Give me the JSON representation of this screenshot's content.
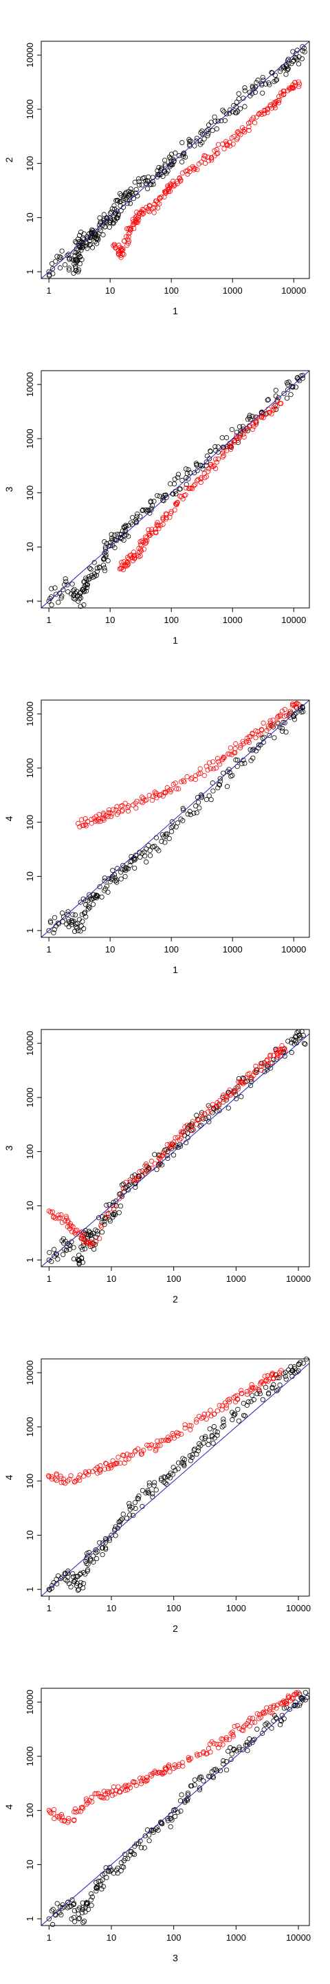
{
  "chart_data": [
    {
      "type": "scatter",
      "xlabel": "1",
      "ylabel": "2",
      "log_x": true,
      "log_y": true,
      "xlim": [
        0.75,
        18000
      ],
      "ylim": [
        0.75,
        18000
      ],
      "x_ticks": [
        1,
        10,
        100,
        1000,
        10000
      ],
      "y_ticks": [
        1,
        10,
        100,
        1000,
        10000
      ],
      "x_tick_labels": [
        "1",
        "10",
        "100",
        "1000",
        "10000"
      ],
      "y_tick_labels": [
        "1",
        "10",
        "100",
        "1000",
        "10000"
      ],
      "reference_line": "y = x",
      "grid": false,
      "colors": {
        "black_series": "#000000",
        "red_series": "#ff0000",
        "reference_line": "#1f1fb8"
      },
      "series": [
        {
          "color": "black",
          "points": [
            [
              1,
              1
            ],
            [
              2,
              2
            ],
            [
              3,
              1
            ],
            [
              3,
              2
            ],
            [
              3,
              4
            ],
            [
              4,
              3
            ],
            [
              5,
              5
            ],
            [
              6,
              4
            ],
            [
              8,
              8
            ],
            [
              10,
              10
            ],
            [
              12,
              12
            ],
            [
              15,
              20
            ],
            [
              20,
              25
            ],
            [
              30,
              40
            ],
            [
              50,
              55
            ],
            [
              80,
              90
            ],
            [
              100,
              110
            ],
            [
              200,
              210
            ],
            [
              400,
              420
            ],
            [
              800,
              820
            ],
            [
              1500,
              1600
            ],
            [
              3000,
              2800
            ],
            [
              6000,
              5000
            ],
            [
              10000,
              8000
            ],
            [
              14000,
              12000
            ]
          ]
        },
        {
          "color": "red",
          "points": [
            [
              12,
              3
            ],
            [
              15,
              2
            ],
            [
              20,
              5
            ],
            [
              25,
              8
            ],
            [
              30,
              12
            ],
            [
              50,
              15
            ],
            [
              80,
              30
            ],
            [
              100,
              40
            ],
            [
              200,
              70
            ],
            [
              400,
              130
            ],
            [
              800,
              230
            ],
            [
              1500,
              400
            ],
            [
              3000,
              800
            ],
            [
              5000,
              1300
            ],
            [
              8000,
              2200
            ],
            [
              12000,
              3200
            ]
          ]
        }
      ]
    },
    {
      "type": "scatter",
      "xlabel": "1",
      "ylabel": "3",
      "log_x": true,
      "log_y": true,
      "xlim": [
        0.75,
        18000
      ],
      "ylim": [
        0.75,
        18000
      ],
      "x_ticks": [
        1,
        10,
        100,
        1000,
        10000
      ],
      "y_ticks": [
        1,
        10,
        100,
        1000,
        10000
      ],
      "x_tick_labels": [
        "1",
        "10",
        "100",
        "1000",
        "10000"
      ],
      "y_tick_labels": [
        "1",
        "10",
        "100",
        "1000",
        "10000"
      ],
      "reference_line": "y = x",
      "grid": false,
      "colors": {
        "black_series": "#000000",
        "red_series": "#ff0000",
        "reference_line": "#1f1fb8"
      },
      "series": [
        {
          "color": "black",
          "points": [
            [
              1,
              1
            ],
            [
              2,
              2
            ],
            [
              3,
              1
            ],
            [
              4,
              2
            ],
            [
              5,
              3
            ],
            [
              8,
              6
            ],
            [
              10,
              12
            ],
            [
              15,
              15
            ],
            [
              20,
              25
            ],
            [
              40,
              45
            ],
            [
              80,
              90
            ],
            [
              150,
              170
            ],
            [
              300,
              320
            ],
            [
              700,
              700
            ],
            [
              1500,
              1500
            ],
            [
              3000,
              3100
            ],
            [
              8000,
              8000
            ],
            [
              14000,
              13000
            ]
          ]
        },
        {
          "color": "red",
          "points": [
            [
              15,
              4
            ],
            [
              20,
              6
            ],
            [
              30,
              8
            ],
            [
              40,
              15
            ],
            [
              60,
              25
            ],
            [
              100,
              45
            ],
            [
              200,
              120
            ],
            [
              400,
              250
            ],
            [
              800,
              600
            ],
            [
              1500,
              1200
            ],
            [
              3000,
              2500
            ],
            [
              6000,
              4500
            ]
          ]
        }
      ]
    },
    {
      "type": "scatter",
      "xlabel": "1",
      "ylabel": "4",
      "log_x": true,
      "log_y": true,
      "xlim": [
        0.75,
        18000
      ],
      "ylim": [
        0.75,
        18000
      ],
      "x_ticks": [
        1,
        10,
        100,
        1000,
        10000
      ],
      "y_ticks": [
        1,
        10,
        100,
        1000,
        10000
      ],
      "x_tick_labels": [
        "1",
        "10",
        "100",
        "1000",
        "10000"
      ],
      "y_tick_labels": [
        "1",
        "10",
        "100",
        "1000",
        "10000"
      ],
      "reference_line": "y = x",
      "grid": false,
      "colors": {
        "black_series": "#000000",
        "red_series": "#ff0000",
        "reference_line": "#1f1fb8"
      },
      "series": [
        {
          "color": "black",
          "points": [
            [
              1,
              1
            ],
            [
              2,
              2
            ],
            [
              3,
              1
            ],
            [
              4,
              3
            ],
            [
              6,
              4
            ],
            [
              10,
              8
            ],
            [
              15,
              12
            ],
            [
              25,
              20
            ],
            [
              50,
              35
            ],
            [
              100,
              80
            ],
            [
              250,
              200
            ],
            [
              600,
              500
            ],
            [
              1500,
              1400
            ],
            [
              4000,
              4000
            ],
            [
              10000,
              9000
            ],
            [
              14000,
              13000
            ]
          ]
        },
        {
          "color": "red",
          "points": [
            [
              3,
              95
            ],
            [
              6,
              110
            ],
            [
              10,
              150
            ],
            [
              20,
              200
            ],
            [
              50,
              300
            ],
            [
              100,
              400
            ],
            [
              300,
              800
            ],
            [
              700,
              1500
            ],
            [
              1500,
              2800
            ],
            [
              3000,
              5000
            ],
            [
              6000,
              9000
            ],
            [
              12000,
              15000
            ]
          ]
        }
      ]
    },
    {
      "type": "scatter",
      "xlabel": "2",
      "ylabel": "3",
      "log_x": true,
      "log_y": true,
      "xlim": [
        0.75,
        15000
      ],
      "ylim": [
        0.75,
        18000
      ],
      "x_ticks": [
        1,
        10,
        100,
        1000,
        10000
      ],
      "y_ticks": [
        1,
        10,
        100,
        1000,
        10000
      ],
      "x_tick_labels": [
        "1",
        "10",
        "100",
        "1000",
        "10000"
      ],
      "y_tick_labels": [
        "1",
        "10",
        "100",
        "1000",
        "10000"
      ],
      "reference_line": "y = x",
      "grid": false,
      "colors": {
        "black_series": "#000000",
        "red_series": "#ff0000",
        "reference_line": "#1f1fb8"
      },
      "series": [
        {
          "color": "black",
          "points": [
            [
              1,
              1
            ],
            [
              2,
              2
            ],
            [
              3,
              1
            ],
            [
              4,
              3
            ],
            [
              5,
              2
            ],
            [
              8,
              6
            ],
            [
              12,
              10
            ],
            [
              20,
              25
            ],
            [
              40,
              50
            ],
            [
              80,
              100
            ],
            [
              150,
              200
            ],
            [
              300,
              400
            ],
            [
              700,
              900
            ],
            [
              1500,
              2000
            ],
            [
              4000,
              5000
            ],
            [
              9000,
              11000
            ],
            [
              12000,
              14000
            ]
          ]
        },
        {
          "color": "red",
          "points": [
            [
              1,
              8
            ],
            [
              2,
              5
            ],
            [
              3,
              3
            ],
            [
              5,
              2
            ],
            [
              20,
              30
            ],
            [
              50,
              60
            ],
            [
              100,
              150
            ],
            [
              200,
              300
            ],
            [
              500,
              800
            ],
            [
              1000,
              1500
            ],
            [
              2000,
              3000
            ],
            [
              4000,
              6000
            ],
            [
              6000,
              8000
            ]
          ]
        }
      ]
    },
    {
      "type": "scatter",
      "xlabel": "2",
      "ylabel": "4",
      "log_x": true,
      "log_y": true,
      "xlim": [
        0.75,
        15000
      ],
      "ylim": [
        0.75,
        18000
      ],
      "x_ticks": [
        1,
        10,
        100,
        1000,
        10000
      ],
      "y_ticks": [
        1,
        10,
        100,
        1000,
        10000
      ],
      "x_tick_labels": [
        "1",
        "10",
        "100",
        "1000",
        "10000"
      ],
      "y_tick_labels": [
        "1",
        "10",
        "100",
        "1000",
        "10000"
      ],
      "reference_line": "y = x",
      "grid": false,
      "colors": {
        "black_series": "#000000",
        "red_series": "#ff0000",
        "reference_line": "#1f1fb8"
      },
      "series": [
        {
          "color": "black",
          "points": [
            [
              1,
              1
            ],
            [
              2,
              2
            ],
            [
              3,
              1
            ],
            [
              4,
              3
            ],
            [
              6,
              5
            ],
            [
              10,
              10
            ],
            [
              20,
              30
            ],
            [
              40,
              60
            ],
            [
              80,
              120
            ],
            [
              150,
              250
            ],
            [
              300,
              500
            ],
            [
              600,
              1000
            ],
            [
              1500,
              2500
            ],
            [
              4000,
              6000
            ],
            [
              8000,
              11000
            ],
            [
              12000,
              15000
            ]
          ]
        },
        {
          "color": "red",
          "points": [
            [
              1,
              120
            ],
            [
              2,
              100
            ],
            [
              5,
              150
            ],
            [
              10,
              200
            ],
            [
              20,
              300
            ],
            [
              50,
              450
            ],
            [
              100,
              700
            ],
            [
              300,
              1500
            ],
            [
              700,
              2500
            ],
            [
              1500,
              4500
            ],
            [
              3000,
              7000
            ],
            [
              5000,
              10000
            ]
          ]
        }
      ]
    },
    {
      "type": "scatter",
      "xlabel": "3",
      "ylabel": "4",
      "log_x": true,
      "log_y": true,
      "xlim": [
        0.75,
        15000
      ],
      "ylim": [
        0.75,
        18000
      ],
      "x_ticks": [
        1,
        10,
        100,
        1000,
        10000
      ],
      "y_ticks": [
        1,
        10,
        100,
        1000,
        10000
      ],
      "x_tick_labels": [
        "1",
        "10",
        "100",
        "1000",
        "10000"
      ],
      "y_tick_labels": [
        "1",
        "10",
        "100",
        "1000",
        "10000"
      ],
      "reference_line": "y = x",
      "grid": false,
      "colors": {
        "black_series": "#000000",
        "red_series": "#ff0000",
        "reference_line": "#1f1fb8"
      },
      "series": [
        {
          "color": "black",
          "points": [
            [
              1,
              1
            ],
            [
              2,
              2
            ],
            [
              3,
              1
            ],
            [
              4,
              2
            ],
            [
              6,
              4
            ],
            [
              10,
              8
            ],
            [
              20,
              15
            ],
            [
              40,
              35
            ],
            [
              80,
              70
            ],
            [
              150,
              150
            ],
            [
              300,
              350
            ],
            [
              700,
              800
            ],
            [
              1500,
              1800
            ],
            [
              4000,
              4500
            ],
            [
              9000,
              10000
            ],
            [
              13000,
              15000
            ]
          ]
        },
        {
          "color": "red",
          "points": [
            [
              1,
              100
            ],
            [
              2,
              60
            ],
            [
              4,
              150
            ],
            [
              8,
              200
            ],
            [
              15,
              250
            ],
            [
              30,
              350
            ],
            [
              60,
              500
            ],
            [
              100,
              600
            ],
            [
              300,
              1200
            ],
            [
              700,
              2200
            ],
            [
              1500,
              4000
            ],
            [
              3000,
              6500
            ],
            [
              6000,
              10000
            ],
            [
              10000,
              15000
            ]
          ]
        }
      ]
    }
  ]
}
